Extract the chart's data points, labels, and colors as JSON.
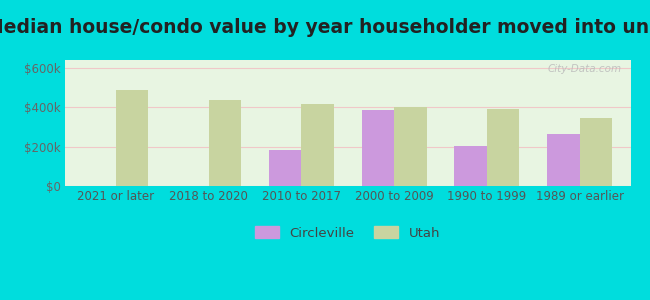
{
  "title": "Median house/condo value by year householder moved into unit",
  "categories": [
    "2021 or later",
    "2018 to 2020",
    "2010 to 2017",
    "2000 to 2009",
    "1990 to 1999",
    "1989 or earlier"
  ],
  "circleville": [
    null,
    null,
    185000,
    385000,
    205000,
    265000
  ],
  "utah": [
    490000,
    435000,
    415000,
    400000,
    390000,
    345000
  ],
  "circleville_color": "#cc99dd",
  "utah_color": "#c8d4a0",
  "background_outer": "#00dddd",
  "background_inner": "#e8f5e2",
  "ylabel_ticks": [
    "$0",
    "$200k",
    "$400k",
    "$600k"
  ],
  "ytick_values": [
    0,
    200000,
    400000,
    600000
  ],
  "ylim": [
    0,
    640000
  ],
  "bar_width": 0.35,
  "legend_labels": [
    "Circleville",
    "Utah"
  ],
  "watermark": "City-Data.com",
  "title_fontsize": 13.5,
  "tick_fontsize": 8.5,
  "legend_fontsize": 9.5
}
